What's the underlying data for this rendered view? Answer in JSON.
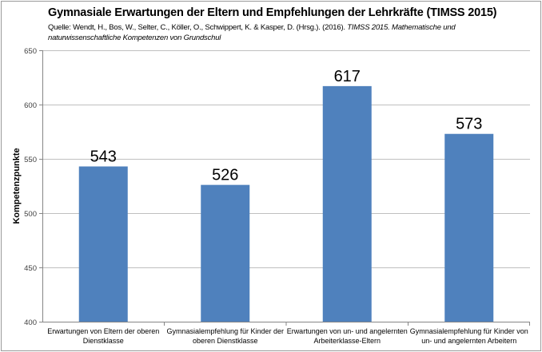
{
  "chart_data": {
    "type": "bar",
    "title": "Gymnasiale Erwartungen der Eltern und Empfehlungen der Lehrkräfte (TIMSS 2015)",
    "subtitle": {
      "prefix": "Quelle:  Wendt, H., Bos, W., Selter, C., Köller, O., Schwippert, K. & Kasper, D. (Hrsg.). (2016). ",
      "italic": "TIMSS 2015. Mathematische und naturwissenschaftliche Kompetenzen von Grundschul"
    },
    "categories": [
      [
        "Erwartungen von Eltern der oberen",
        "Dienstklasse"
      ],
      [
        "Gymnasialempfehlung für Kinder  der",
        "oberen Dienstklasse"
      ],
      [
        "Erwartungen von un- und angelernten",
        "Arbeiterklasse-Eltern"
      ],
      [
        "Gymnasialempfehlung für Kinder von",
        "un- und angelernten Arbeitern"
      ]
    ],
    "values": [
      543,
      526,
      617,
      573
    ],
    "data_labels": [
      "543",
      "526",
      "617",
      "573"
    ],
    "xlabel": "",
    "ylabel": "Kompetenzpunkte",
    "ylim": [
      400,
      650
    ],
    "yticks": [
      400,
      450,
      500,
      550,
      600,
      650
    ],
    "grid": true,
    "legend": "none",
    "bar_color": "#4f81bd",
    "grid_color": "#bfbfbf"
  }
}
